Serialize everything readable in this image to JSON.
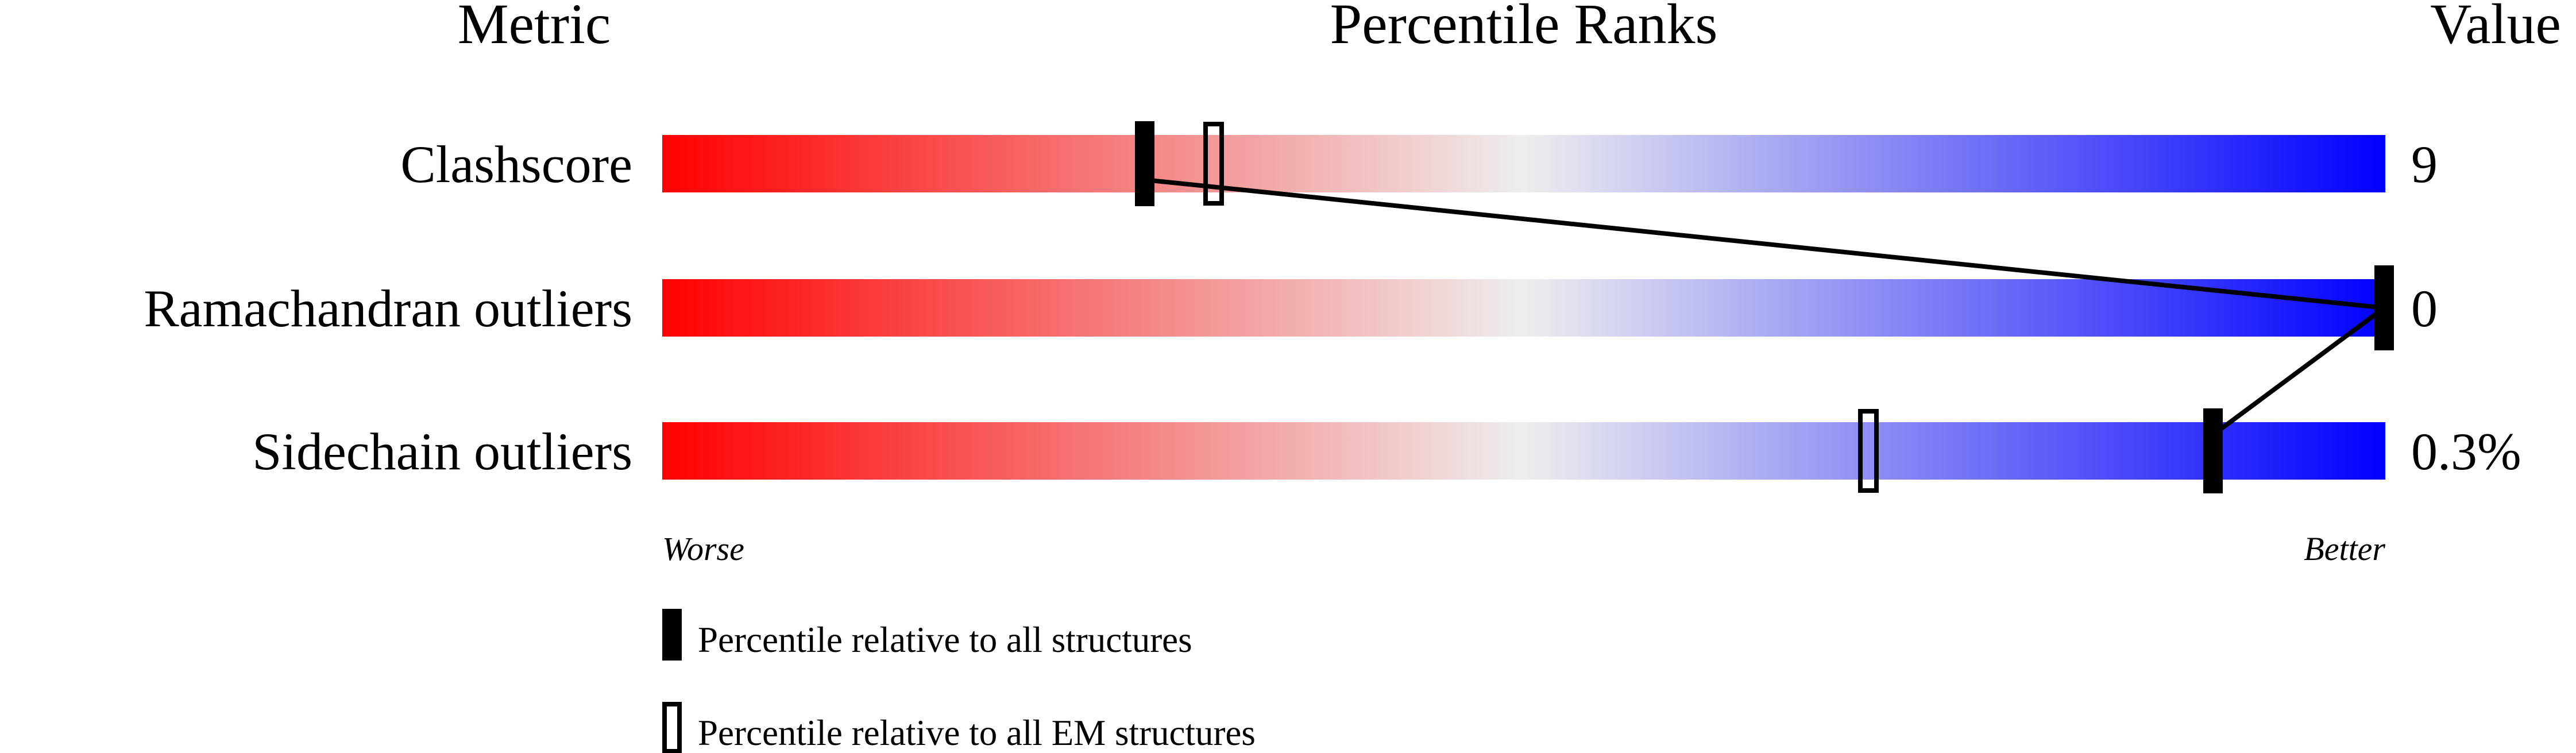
{
  "chart_data": {
    "type": "percentile-slider",
    "headers": {
      "metric": "Metric",
      "title": "Percentile Ranks",
      "value": "Value"
    },
    "xlim": [
      0,
      100
    ],
    "axis_labels": {
      "left": "Worse",
      "right": "Better"
    },
    "colors": {
      "worse": "#ff0000",
      "middle": "#eeeeee",
      "better": "#0000ff"
    },
    "rows": [
      {
        "metric": "Clashscore",
        "value": "9",
        "percentile_all": 28,
        "percentile_em": 32
      },
      {
        "metric": "Ramachandran outliers",
        "value": "0",
        "percentile_all": 100,
        "percentile_em": null
      },
      {
        "metric": "Sidechain outliers",
        "value": "0.3%",
        "percentile_all": 90,
        "percentile_em": 70
      }
    ],
    "legend": [
      {
        "marker": "filled",
        "label": "Percentile relative to all structures"
      },
      {
        "marker": "hollow",
        "label": "Percentile relative to all EM structures"
      }
    ]
  }
}
